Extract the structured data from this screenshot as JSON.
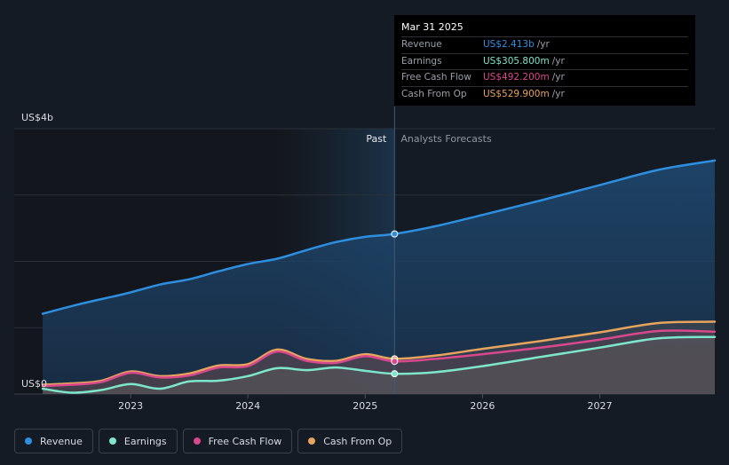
{
  "chart_data": {
    "type": "area",
    "y_unit_prefix": "US$",
    "ylim": [
      0,
      4
    ],
    "y_axis_labels": [
      "US$4b",
      "US$0"
    ],
    "x_ticks": [
      "2023",
      "2024",
      "2025",
      "2026",
      "2027"
    ],
    "xlim": [
      2022.25,
      2027.98
    ],
    "divider_year": 2025.25,
    "past_label": "Past",
    "forecast_label": "Analysts Forecasts",
    "series": [
      {
        "name": "Revenue",
        "color": "#2e8fe0",
        "unit": "b",
        "x": [
          2022.25,
          2022.6,
          2022.95,
          2023.25,
          2023.5,
          2023.75,
          2024.0,
          2024.25,
          2024.5,
          2024.75,
          2025.0,
          2025.25,
          2025.6,
          2026.0,
          2026.5,
          2027.0,
          2027.5,
          2027.98
        ],
        "values": [
          1.21,
          1.37,
          1.51,
          1.65,
          1.73,
          1.85,
          1.96,
          2.04,
          2.17,
          2.29,
          2.37,
          2.413,
          2.53,
          2.7,
          2.92,
          3.15,
          3.38,
          3.52
        ]
      },
      {
        "name": "Earnings",
        "color": "#7ee6cb",
        "unit": "m",
        "x": [
          2022.25,
          2022.5,
          2022.75,
          2023.0,
          2023.25,
          2023.5,
          2023.75,
          2024.0,
          2024.25,
          2024.5,
          2024.75,
          2025.0,
          2025.25,
          2025.6,
          2026.0,
          2026.5,
          2027.0,
          2027.5,
          2027.98
        ],
        "values": [
          0.08,
          0.02,
          0.06,
          0.15,
          0.08,
          0.19,
          0.2,
          0.27,
          0.39,
          0.36,
          0.4,
          0.35,
          0.3058,
          0.33,
          0.42,
          0.56,
          0.7,
          0.84,
          0.86
        ]
      },
      {
        "name": "Free Cash Flow",
        "color": "#d8488d",
        "unit": "m",
        "x": [
          2022.25,
          2022.5,
          2022.75,
          2023.0,
          2023.25,
          2023.5,
          2023.75,
          2024.0,
          2024.25,
          2024.5,
          2024.75,
          2025.0,
          2025.25,
          2025.6,
          2026.0,
          2026.5,
          2027.0,
          2027.5,
          2027.98
        ],
        "values": [
          0.12,
          0.14,
          0.18,
          0.32,
          0.25,
          0.28,
          0.4,
          0.42,
          0.64,
          0.5,
          0.47,
          0.57,
          0.4922,
          0.53,
          0.6,
          0.7,
          0.82,
          0.95,
          0.94
        ]
      },
      {
        "name": "Cash From Op",
        "color": "#e6a45f",
        "unit": "m",
        "x": [
          2022.25,
          2022.5,
          2022.75,
          2023.0,
          2023.25,
          2023.5,
          2023.75,
          2024.0,
          2024.25,
          2024.5,
          2024.75,
          2025.0,
          2025.25,
          2025.6,
          2026.0,
          2026.5,
          2027.0,
          2027.5,
          2027.98
        ],
        "values": [
          0.14,
          0.16,
          0.2,
          0.34,
          0.27,
          0.31,
          0.43,
          0.45,
          0.67,
          0.53,
          0.5,
          0.6,
          0.5299,
          0.58,
          0.68,
          0.8,
          0.93,
          1.07,
          1.09
        ]
      }
    ]
  },
  "tooltip": {
    "date": "Mar 31 2025",
    "rows": [
      {
        "label": "Revenue",
        "value": "US$2.413b",
        "unit": "/yr",
        "color": "#2e8fe0"
      },
      {
        "label": "Earnings",
        "value": "US$305.800m",
        "unit": "/yr",
        "color": "#7ee6cb"
      },
      {
        "label": "Free Cash Flow",
        "value": "US$492.200m",
        "unit": "/yr",
        "color": "#d8488d"
      },
      {
        "label": "Cash From Op",
        "value": "US$529.900m",
        "unit": "/yr",
        "color": "#e6a45f"
      }
    ]
  },
  "legend": [
    {
      "label": "Revenue",
      "color": "#2e8fe0"
    },
    {
      "label": "Earnings",
      "color": "#7ee6cb"
    },
    {
      "label": "Free Cash Flow",
      "color": "#d8488d"
    },
    {
      "label": "Cash From Op",
      "color": "#e6a45f"
    }
  ]
}
